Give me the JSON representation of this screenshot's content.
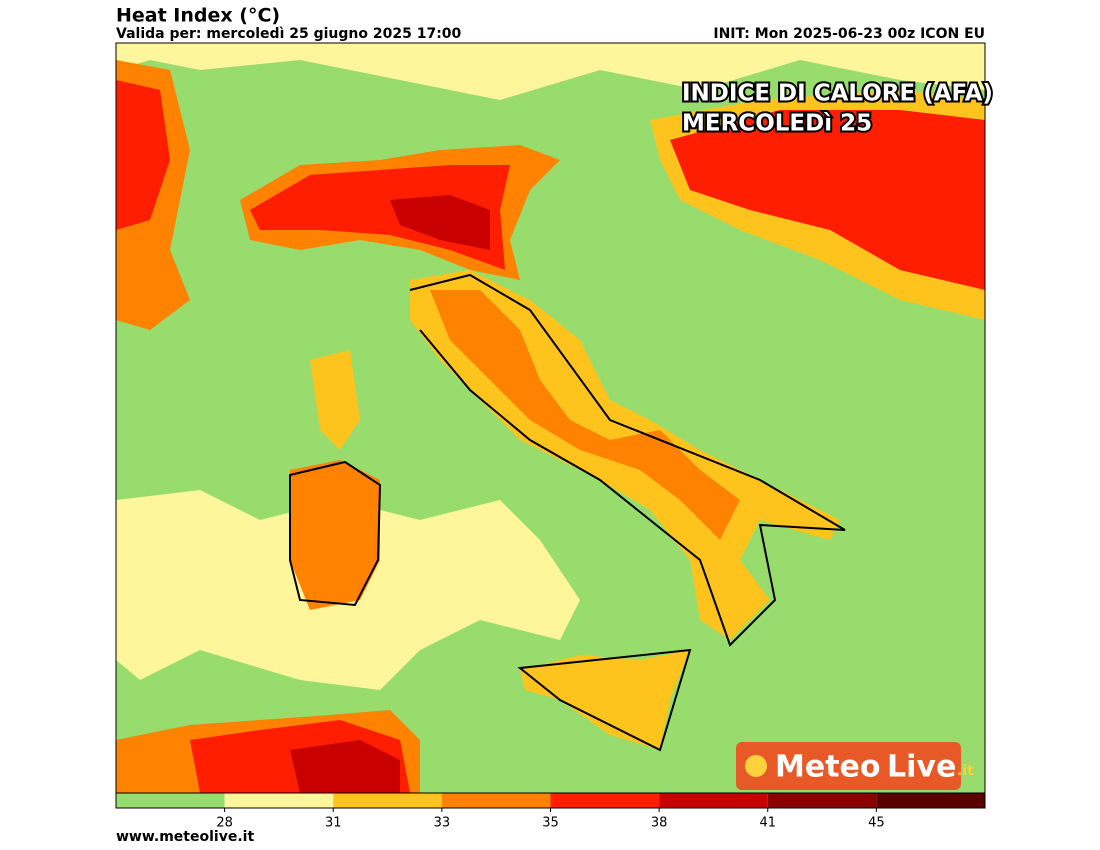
{
  "header": {
    "title": "Heat Index (°C)",
    "subtitle": "Valida per: mercoledì 25 giugno 2025 17:00",
    "init": "INIT: Mon 2025-06-23 00z ICON EU"
  },
  "overlay": {
    "lines": [
      "INDICE DI CALORE (AFA)",
      "MERCOLEDì 25"
    ]
  },
  "colorbar": {
    "colors": [
      "#98dc6e",
      "#fff59b",
      "#ffc31e",
      "#ff8200",
      "#ff1e00",
      "#c80000",
      "#8c0000",
      "#5a0000"
    ],
    "ticks": [
      28,
      31,
      33,
      35,
      38,
      41,
      45
    ]
  },
  "logo": {
    "part1": "Meteo",
    "part2": "Live",
    "part3": ".it"
  },
  "footer": {
    "url": "www.meteolive.it"
  }
}
